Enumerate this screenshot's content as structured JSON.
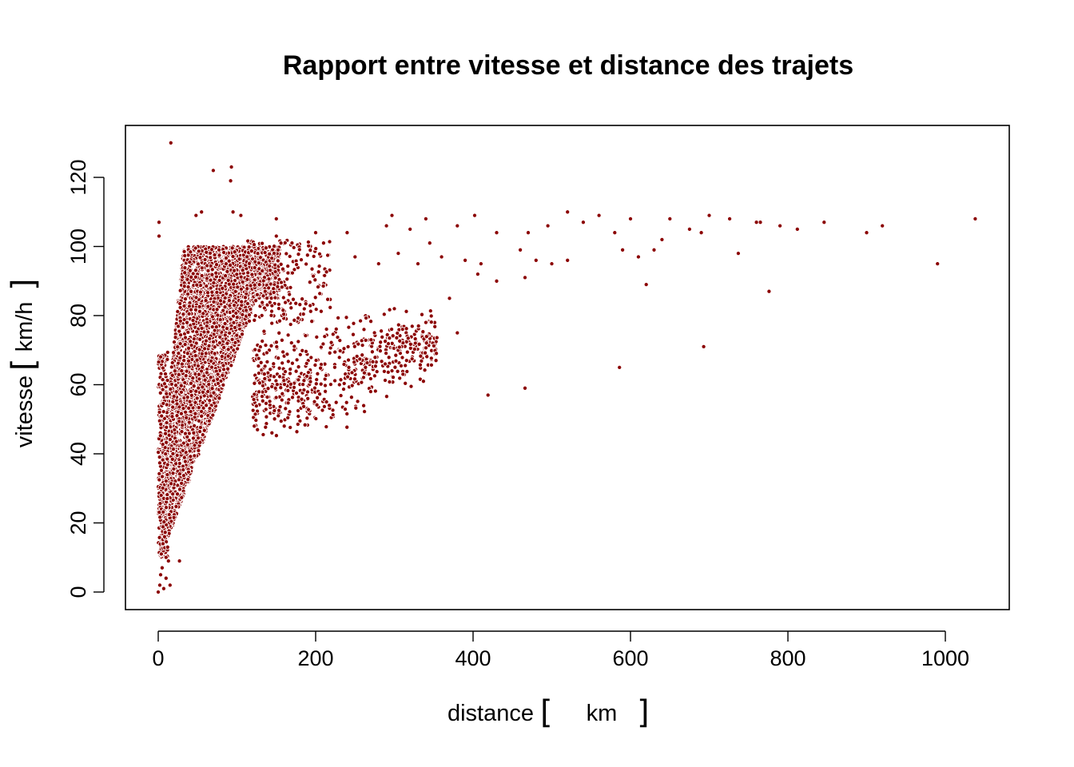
{
  "chart_data": {
    "type": "scatter",
    "title": "Rapport entre vitesse et distance des trajets",
    "xlabel": "distance",
    "xlabel_unit": "km",
    "ylabel": "vitesse",
    "ylabel_unit": "km/h",
    "xlim": [
      -20,
      1060
    ],
    "ylim": [
      -5,
      135
    ],
    "x_ticks": [
      0,
      200,
      400,
      600,
      800,
      1000
    ],
    "y_ticks": [
      0,
      20,
      40,
      60,
      80,
      100,
      120
    ],
    "x_tick_labels": [
      "0",
      "200",
      "400",
      "600",
      "800",
      "1000"
    ],
    "y_tick_labels": [
      "0",
      "20",
      "40",
      "60",
      "80",
      "100",
      "120"
    ],
    "grid": false,
    "point_color": "#8b0000",
    "point_outline": "#ffffff",
    "points": [
      [
        16,
        130
      ],
      [
        70,
        122
      ],
      [
        93,
        123
      ],
      [
        92,
        119
      ],
      [
        1,
        107
      ],
      [
        1,
        103
      ],
      [
        48,
        109
      ],
      [
        55,
        110
      ],
      [
        95,
        110
      ],
      [
        105,
        109
      ],
      [
        150,
        108
      ],
      [
        297,
        109
      ],
      [
        340,
        108
      ],
      [
        402,
        109
      ],
      [
        520,
        110
      ],
      [
        560,
        109
      ],
      [
        600,
        108
      ],
      [
        650,
        108
      ],
      [
        700,
        109
      ],
      [
        726,
        108
      ],
      [
        765,
        107
      ],
      [
        846,
        107
      ],
      [
        1038,
        108
      ],
      [
        200,
        104
      ],
      [
        240,
        104
      ],
      [
        290,
        106
      ],
      [
        320,
        105
      ],
      [
        380,
        106
      ],
      [
        430,
        104
      ],
      [
        470,
        104
      ],
      [
        495,
        106
      ],
      [
        540,
        107
      ],
      [
        580,
        104
      ],
      [
        640,
        102
      ],
      [
        675,
        105
      ],
      [
        690,
        104
      ],
      [
        760,
        107
      ],
      [
        790,
        106
      ],
      [
        812,
        105
      ],
      [
        900,
        104
      ],
      [
        920,
        106
      ],
      [
        150,
        103
      ],
      [
        170,
        101
      ],
      [
        210,
        101
      ],
      [
        250,
        97
      ],
      [
        280,
        95
      ],
      [
        305,
        98
      ],
      [
        330,
        95
      ],
      [
        345,
        101
      ],
      [
        360,
        97
      ],
      [
        390,
        96
      ],
      [
        410,
        95
      ],
      [
        460,
        99
      ],
      [
        480,
        96
      ],
      [
        520,
        96
      ],
      [
        590,
        99
      ],
      [
        610,
        97
      ],
      [
        630,
        99
      ],
      [
        737,
        98
      ],
      [
        620,
        89
      ],
      [
        990,
        95
      ],
      [
        776,
        87
      ],
      [
        370,
        85
      ],
      [
        406,
        92
      ],
      [
        430,
        90
      ],
      [
        466,
        91
      ],
      [
        500,
        95
      ],
      [
        300,
        82
      ],
      [
        340,
        78
      ],
      [
        380,
        75
      ],
      [
        693,
        71
      ],
      [
        586,
        65
      ],
      [
        419,
        57
      ],
      [
        466,
        59
      ],
      [
        337,
        61
      ],
      [
        270,
        58
      ],
      [
        0,
        0
      ],
      [
        2,
        2
      ],
      [
        3,
        5
      ],
      [
        5,
        7
      ],
      [
        7,
        1
      ],
      [
        10,
        4
      ],
      [
        13,
        9
      ],
      [
        15,
        2
      ],
      [
        27,
        9
      ],
      [
        4,
        11
      ],
      [
        6,
        14
      ],
      [
        8,
        16
      ],
      [
        12,
        13
      ]
    ]
  }
}
